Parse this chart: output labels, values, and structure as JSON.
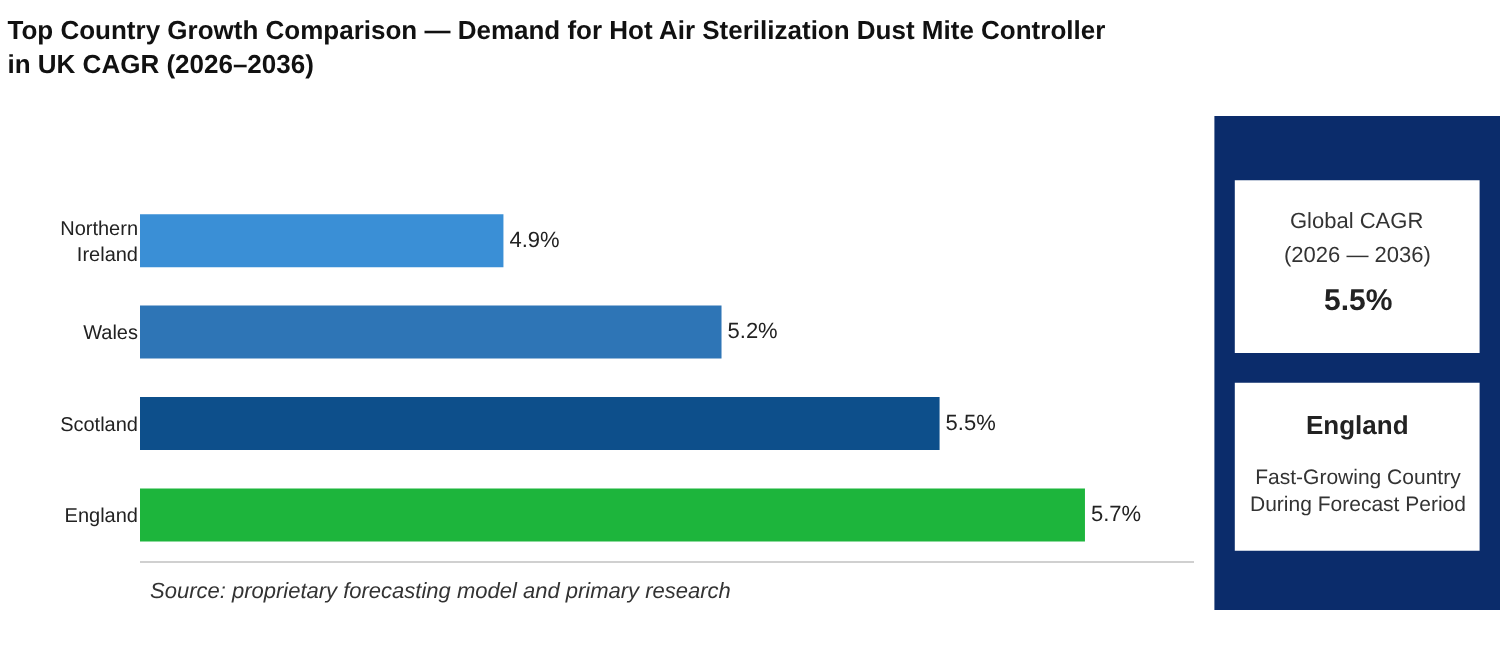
{
  "chart_data": {
    "type": "bar",
    "orientation": "horizontal",
    "title": "Top Country Growth Comparison — Demand for Hot Air Sterilization Dust Mite Controller in UK CAGR (2026–2036)",
    "categories": [
      "Northern Ireland",
      "Wales",
      "Scotland",
      "England"
    ],
    "values": [
      4.9,
      5.2,
      5.5,
      5.7
    ],
    "colors": [
      "#3a8fd6",
      "#2e75b6",
      "#0d4f8b",
      "#1db53c"
    ],
    "value_labels": [
      "4.9%",
      "5.2%",
      "5.5%",
      "5.7%"
    ],
    "xlim": [
      4.4,
      5.85
    ],
    "tick_labels": "y",
    "legend": false,
    "annotations": [
      "Source: proprietary forecasting model and primary research",
      "Global CAGR",
      "(2026 — 2036)",
      "5.5%",
      "England",
      "Fast-Growing Country\nDuring Forecast Period"
    ]
  }
}
